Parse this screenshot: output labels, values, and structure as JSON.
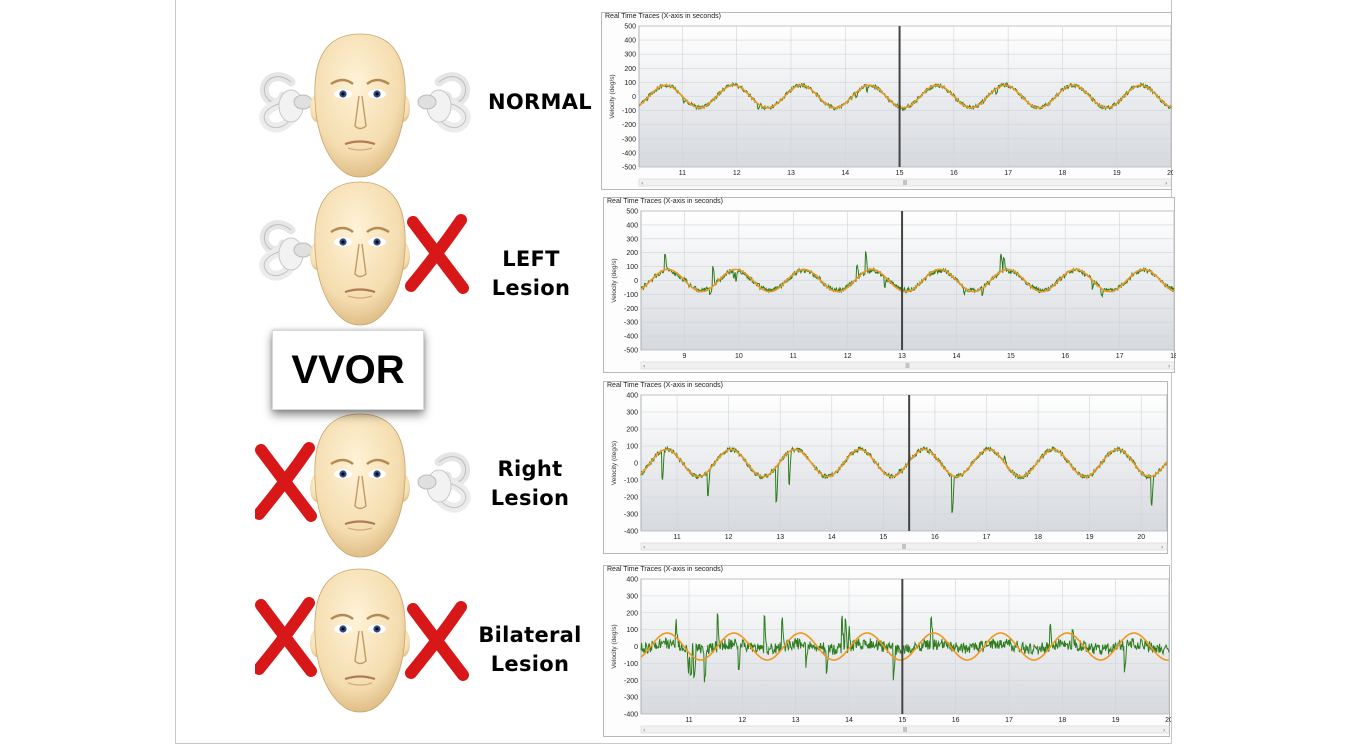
{
  "slide": {
    "vvor_label": "VVOR",
    "rows": [
      {
        "line1": "NORMAL",
        "line2": "",
        "left_ear_lesion": false,
        "right_ear_lesion": false
      },
      {
        "line1": "LEFT",
        "line2": "Lesion",
        "left_ear_lesion": false,
        "right_ear_lesion": true
      },
      {
        "line1": "Right",
        "line2": "Lesion",
        "left_ear_lesion": true,
        "right_ear_lesion": false
      },
      {
        "line1": "Bilateral",
        "line2": "Lesion",
        "left_ear_lesion": true,
        "right_ear_lesion": true
      }
    ],
    "colors": {
      "eye_trace": "#2e7d1f",
      "head_trace": "#f0961e",
      "lesion_x": "#d81818",
      "skin": "#f4dcae",
      "cursor": "#444444"
    }
  },
  "chart_data": [
    {
      "type": "line",
      "title": "Real Time Traces (X-axis in seconds)",
      "ylabel": "Velocity (deg/s)",
      "xlabel": "",
      "xlim": [
        10.2,
        20.0
      ],
      "ylim": [
        -500,
        500
      ],
      "x_ticks": [
        11,
        12,
        13,
        14,
        15,
        16,
        17,
        18,
        19,
        20
      ],
      "y_ticks": [
        500,
        400,
        300,
        200,
        100,
        0,
        -100,
        -200,
        -300,
        -400,
        -500
      ],
      "cursor_x": 15.0,
      "series": [
        {
          "role": "head",
          "amplitude": 80,
          "frequency_hz": 0.8,
          "color": "#f0961e"
        },
        {
          "role": "eye",
          "gain": 1.0,
          "noise": 15,
          "spikes_positive": 0,
          "spikes_negative": 40,
          "spike_rate": 0.6,
          "color": "#2e7d1f"
        }
      ]
    },
    {
      "type": "line",
      "title": "Real Time Traces (X-axis in seconds)",
      "ylabel": "Velocity (deg/s)",
      "xlabel": "",
      "xlim": [
        8.2,
        18.0
      ],
      "ylim": [
        -500,
        500
      ],
      "x_ticks": [
        9,
        10,
        11,
        12,
        13,
        14,
        15,
        16,
        17,
        18
      ],
      "y_ticks": [
        500,
        400,
        300,
        200,
        100,
        0,
        -100,
        -200,
        -300,
        -400,
        -500
      ],
      "cursor_x": 13.0,
      "series": [
        {
          "role": "head",
          "amplitude": 80,
          "frequency_hz": 0.8,
          "color": "#f0961e"
        },
        {
          "role": "eye",
          "gain": 0.9,
          "noise": 18,
          "spikes_positive": 150,
          "spikes_negative": 60,
          "spike_rate": 1.0,
          "color": "#2e7d1f"
        }
      ]
    },
    {
      "type": "line",
      "title": "Real Time Traces (X-axis in seconds)",
      "ylabel": "Velocity (deg/s)",
      "xlabel": "",
      "xlim": [
        10.3,
        20.5
      ],
      "ylim": [
        -400,
        400
      ],
      "x_ticks": [
        11,
        12,
        13,
        14,
        15,
        16,
        17,
        18,
        19,
        20
      ],
      "y_ticks": [
        400,
        300,
        200,
        100,
        0,
        -100,
        -200,
        -300,
        -400
      ],
      "cursor_x": 15.5,
      "series": [
        {
          "role": "head",
          "amplitude": 80,
          "frequency_hz": 0.8,
          "color": "#f0961e"
        },
        {
          "role": "eye",
          "gain": 1.0,
          "noise": 14,
          "spikes_positive": 30,
          "spikes_negative": 200,
          "spike_rate": 0.8,
          "color": "#2e7d1f"
        }
      ]
    },
    {
      "type": "line",
      "title": "Real Time Traces (X-axis in seconds)",
      "ylabel": "Velocity (deg/s)",
      "xlabel": "",
      "xlim": [
        10.1,
        20.0
      ],
      "ylim": [
        -400,
        400
      ],
      "x_ticks": [
        11,
        12,
        13,
        14,
        15,
        16,
        17,
        18,
        19,
        20
      ],
      "y_ticks": [
        400,
        300,
        200,
        100,
        0,
        -100,
        -200,
        -300,
        -400
      ],
      "cursor_x": 15.0,
      "series": [
        {
          "role": "head",
          "amplitude": 80,
          "frequency_hz": 0.8,
          "color": "#f0961e"
        },
        {
          "role": "eye",
          "gain": 0.2,
          "noise": 35,
          "spikes_positive": 160,
          "spikes_negative": 180,
          "spike_rate": 1.6,
          "color": "#2e7d1f"
        }
      ]
    }
  ]
}
